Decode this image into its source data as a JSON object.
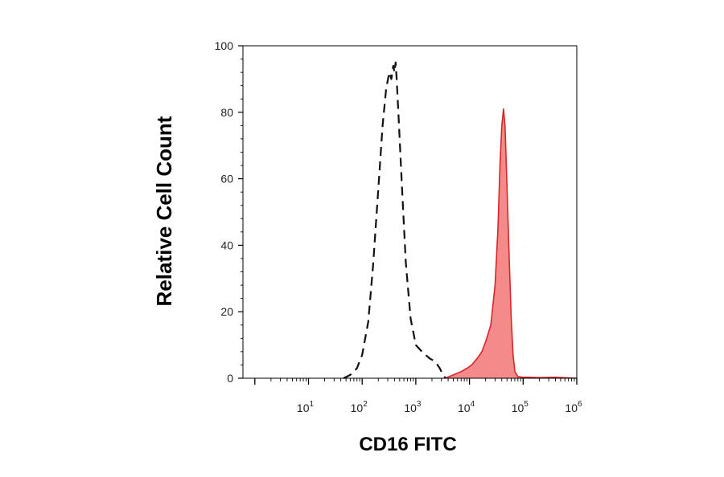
{
  "chart_data": {
    "type": "area",
    "title": "",
    "xlabel": "CD16 FITC",
    "ylabel": "Relative Cell Count",
    "x_scale": "log",
    "xlim": [
      0.6,
      1000000
    ],
    "ylim": [
      0,
      100
    ],
    "yticks": [
      0,
      20,
      40,
      60,
      80,
      100
    ],
    "xtick_labels": [
      {
        "value": 10,
        "base": "10",
        "exp": "1"
      },
      {
        "value": 100,
        "base": "10",
        "exp": "2"
      },
      {
        "value": 1000,
        "base": "10",
        "exp": "3"
      },
      {
        "value": 10000,
        "base": "10",
        "exp": "4"
      },
      {
        "value": 100000,
        "base": "10",
        "exp": "5"
      },
      {
        "value": 1000000,
        "base": "10",
        "exp": "6"
      }
    ],
    "legend": "none",
    "grid": false,
    "series": [
      {
        "style": "dashed-outline",
        "color": "#111111",
        "x": [
          45,
          60,
          80,
          100,
          130,
          160,
          200,
          240,
          280,
          320,
          350,
          380,
          400,
          420,
          440,
          480,
          550,
          650,
          800,
          1000,
          1300,
          1800,
          2300,
          2800,
          3200,
          3600
        ],
        "y": [
          0,
          1,
          3,
          7,
          17,
          34,
          57,
          76,
          87,
          92,
          90,
          94,
          92,
          95,
          90,
          78,
          58,
          35,
          18,
          10,
          8,
          6,
          5,
          3,
          1,
          0
        ]
      },
      {
        "style": "filled",
        "color": "#d62828",
        "fill": "#f48a8a",
        "x": [
          3500,
          5000,
          7000,
          9000,
          11000,
          14000,
          17000,
          20000,
          25000,
          30000,
          34000,
          37000,
          40000,
          43000,
          46000,
          50000,
          55000,
          60000,
          65000,
          70000,
          80000,
          100000,
          130000,
          200000,
          400000,
          1000000
        ],
        "y": [
          0,
          1,
          2,
          3,
          4,
          6,
          8,
          11,
          16,
          28,
          45,
          64,
          76,
          81,
          76,
          58,
          36,
          18,
          7,
          2,
          0.5,
          0.3,
          0.3,
          0.2,
          0.3,
          0
        ]
      }
    ]
  }
}
